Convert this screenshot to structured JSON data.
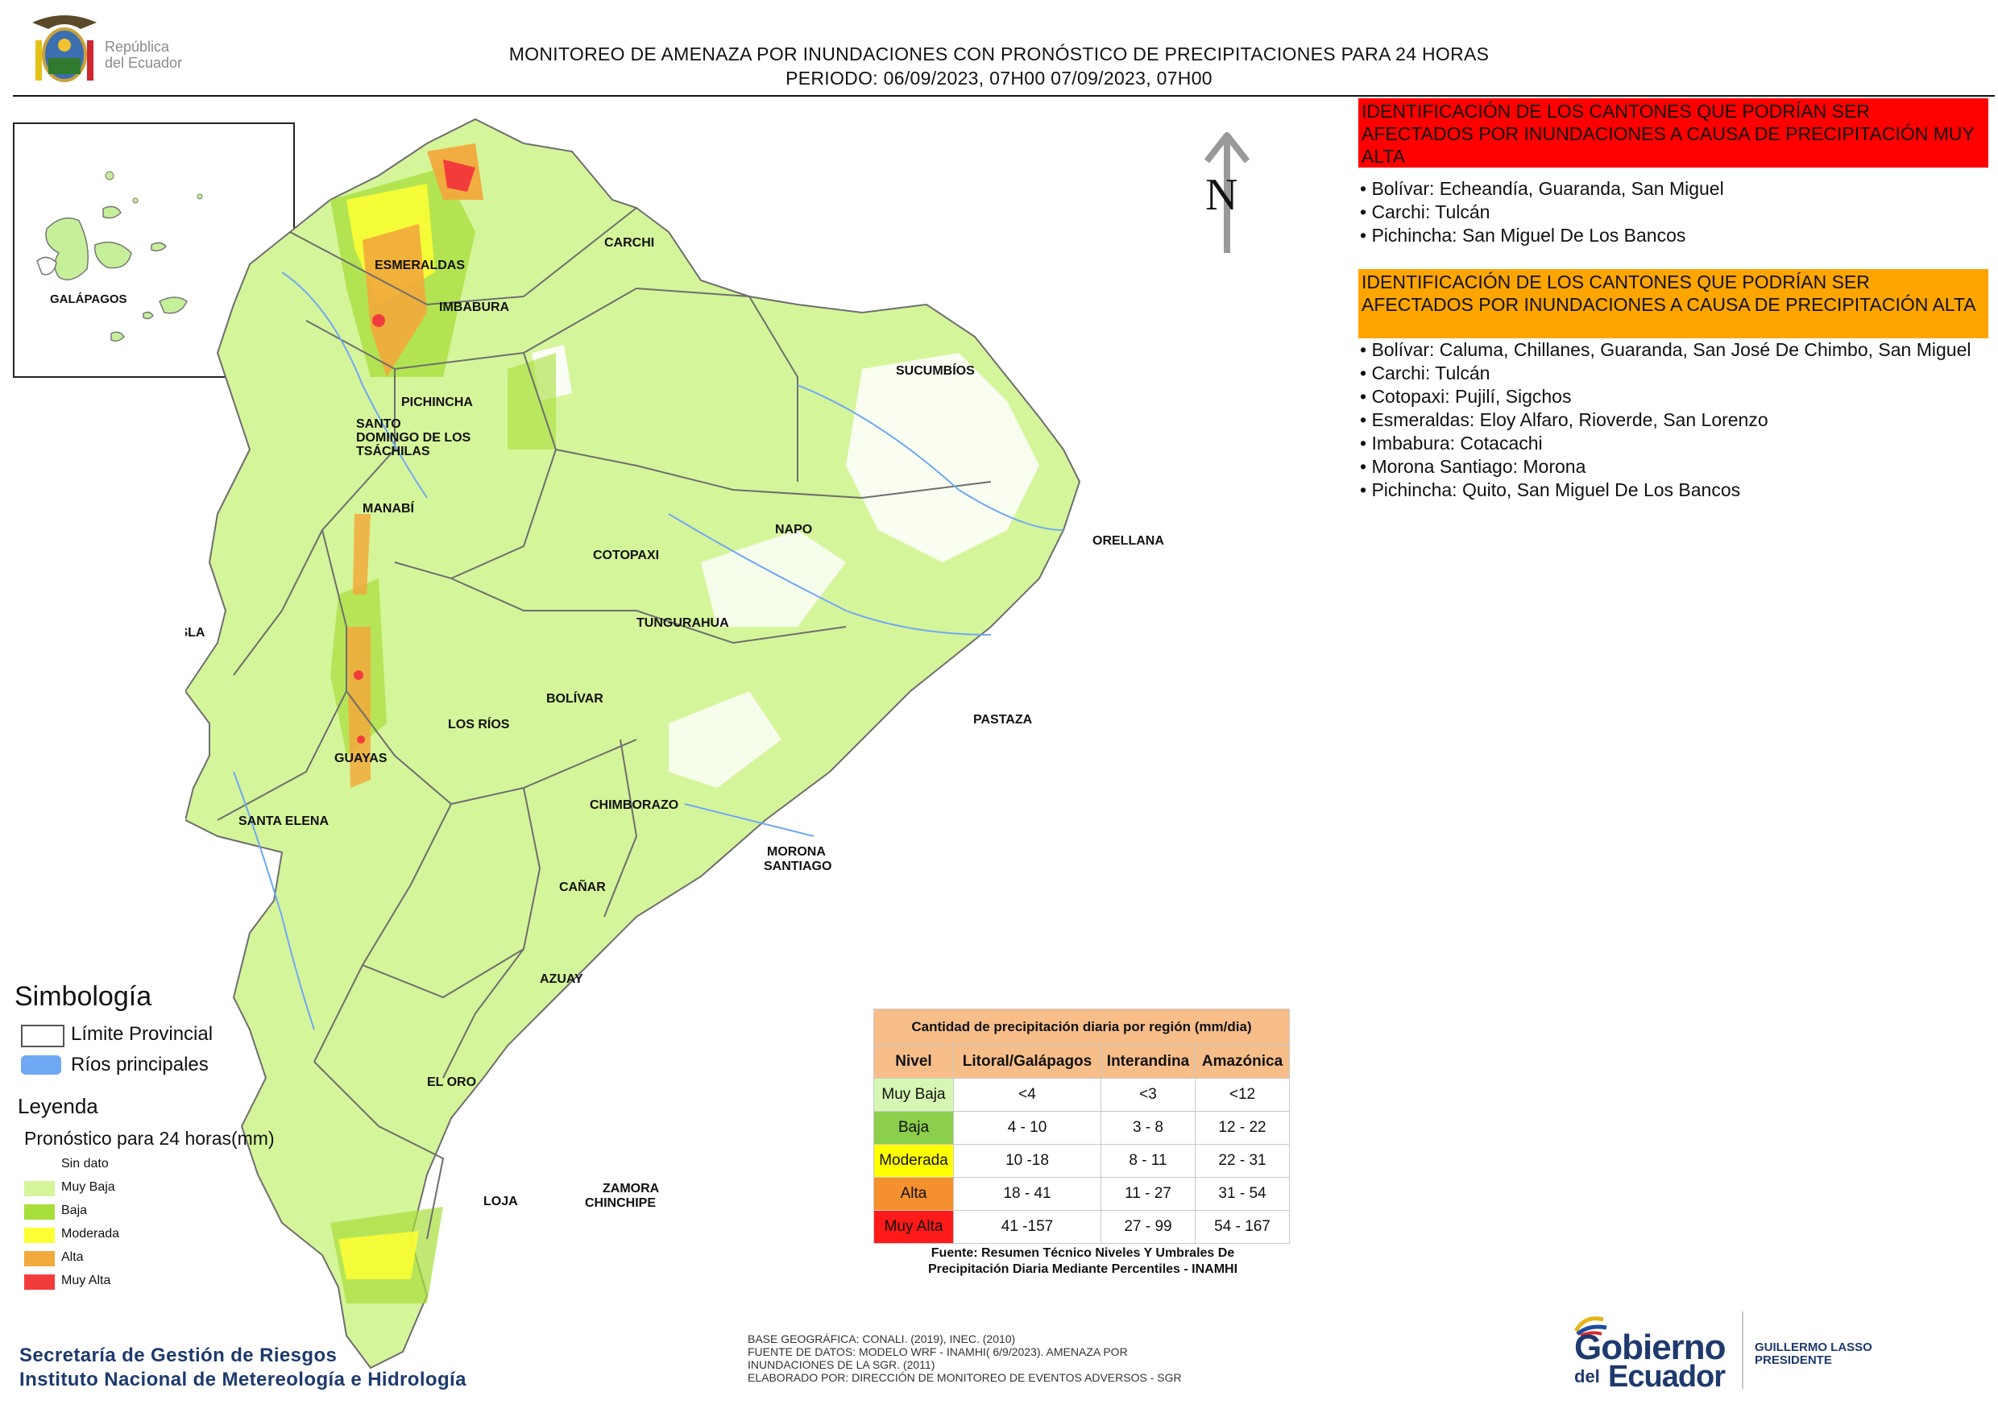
{
  "header": {
    "title": "MONITOREO DE AMENAZA POR INUNDACIONES  CON PRONÓSTICO DE  PRECIPITACIONES PARA 24 HORAS",
    "period": "PERIODO: 06/09/2023, 07H00 07/09/2023, 07H00"
  },
  "logo": {
    "line1": "República",
    "line2": "del Ecuador"
  },
  "map": {
    "north_letter": "N",
    "inset_label": "GALÁPAGOS",
    "provinces": {
      "esmeraldas": "ESMERALDAS",
      "carchi": "CARCHI",
      "imbabura": "IMBABURA",
      "sucumbios": "SUCUMBÍOS",
      "pichincha": "PICHINCHA",
      "santo_domingo_1": "SANTO",
      "santo_domingo_2": "DOMINGO DE LOS",
      "santo_domingo_3": "TSÁCHILAS",
      "manabi": "MANABÍ",
      "napo": "NAPO",
      "orellana": "ORELLANA",
      "cotopaxi": "COTOPAXI",
      "isla": "ISLA",
      "tungurahua": "TUNGURAHUA",
      "bolivar": "BOLÍVAR",
      "los_rios": "LOS RÍOS",
      "pastaza": "PASTAZA",
      "guayas": "GUAYAS",
      "santa_elena": "SANTA ELENA",
      "chimborazo": "CHIMBORAZO",
      "morona_1": "MORONA",
      "morona_2": "SANTIAGO",
      "canar": "CAÑAR",
      "azuay": "AZUAY",
      "el_oro": "EL ORO",
      "zamora_1": "ZAMORA",
      "zamora_2": "CHINCHIPE",
      "loja": "LOJA"
    }
  },
  "alerts": {
    "very_high": {
      "title": "IDENTIFICACIÓN DE LOS CANTONES QUE PODRÍAN SER AFECTADOS POR INUNDACIONES  A CAUSA DE PRECIPITACIÓN MUY ALTA",
      "color": "#ff0000",
      "items": [
        "• Bolívar: Echeandía, Guaranda, San Miguel",
        "• Carchi: Tulcán",
        "• Pichincha: San Miguel De Los Bancos"
      ]
    },
    "high": {
      "title": "IDENTIFICACIÓN DE LOS CANTONES QUE  PODRÍAN SER AFECTADOS POR INUNDACIONES  A CAUSA DE PRECIPITACIÓN ALTA",
      "color": "#ffa500",
      "items": [
        "• Bolívar: Caluma, Chillanes, Guaranda, San José De Chimbo, San Miguel",
        "• Carchi: Tulcán",
        "• Cotopaxi: Pujilí, Sigchos",
        "• Esmeraldas: Eloy Alfaro, Rioverde, San Lorenzo",
        "• Imbabura: Cotacachi",
        "• Morona Santiago: Morona",
        "• Pichincha: Quito, San Miguel De Los Bancos"
      ]
    }
  },
  "simbologia": {
    "title": "Simbología",
    "limite": "Límite Provincial",
    "rios": "Ríos principales"
  },
  "leyenda": {
    "title": "Leyenda",
    "subtitle": "Pronóstico para 24 horas(mm)",
    "items": [
      {
        "label": "Sin dato",
        "color": "#ffffff"
      },
      {
        "label": "Muy Baja",
        "color": "#d5f59a"
      },
      {
        "label": "Baja",
        "color": "#a6de3a"
      },
      {
        "label": "Moderada",
        "color": "#ffff33"
      },
      {
        "label": "Alta",
        "color": "#f2a93b"
      },
      {
        "label": "Muy Alta",
        "color": "#f23c3c"
      }
    ]
  },
  "table": {
    "title": "Cantidad de precipitación diaria por región (mm/dia)",
    "headers": [
      "Nivel",
      "Litoral/Galápagos",
      "Interandina",
      "Amazónica"
    ],
    "rows": [
      {
        "nivel": "Muy Baja",
        "color": "#d6f7b3",
        "litoral": "<4",
        "interandina": "<3",
        "amazonica": "<12"
      },
      {
        "nivel": "Baja",
        "color": "#8ccf4d",
        "litoral": "4 - 10",
        "interandina": "3 - 8",
        "amazonica": "12 - 22"
      },
      {
        "nivel": "Moderada",
        "color": "#ffff00",
        "litoral": "10 -18",
        "interandina": "8 - 11",
        "amazonica": "22 - 31"
      },
      {
        "nivel": "Alta",
        "color": "#f5902e",
        "litoral": "18 - 41",
        "interandina": "11 - 27",
        "amazonica": "31 - 54"
      },
      {
        "nivel": "Muy Alta",
        "color": "#ff1a1a",
        "litoral": "41 -157",
        "interandina": "27 - 99",
        "amazonica": "54 - 167"
      }
    ],
    "source_1": "Fuente: Resumen Técnico Niveles Y Umbrales De",
    "source_2": "Precipitación Diaria Mediante Percentiles - INAMHI"
  },
  "footer": {
    "org_1": "Secretaría de Gestión de Riesgos",
    "org_2": "Instituto Nacional de Metereología e Hidrología",
    "src_1": "BASE GEOGRÁFICA: CONALI. (2019), INEC. (2010)",
    "src_2": "FUENTE DE DATOS: MODELO WRF - INAMHI( 6/9/2023).  AMENAZA POR",
    "src_3": "INUNDACIONES DE LA SGR. (2011)",
    "src_4": "ELABORADO POR: DIRECCIÓN DE MONITOREO DE EVENTOS ADVERSOS - SGR",
    "gob_1": "Gobierno",
    "gob_2": "del",
    "gob_3": "Ecuador",
    "gob_4": "GUILLERMO LASSO",
    "gob_5": "PRESIDENTE"
  }
}
